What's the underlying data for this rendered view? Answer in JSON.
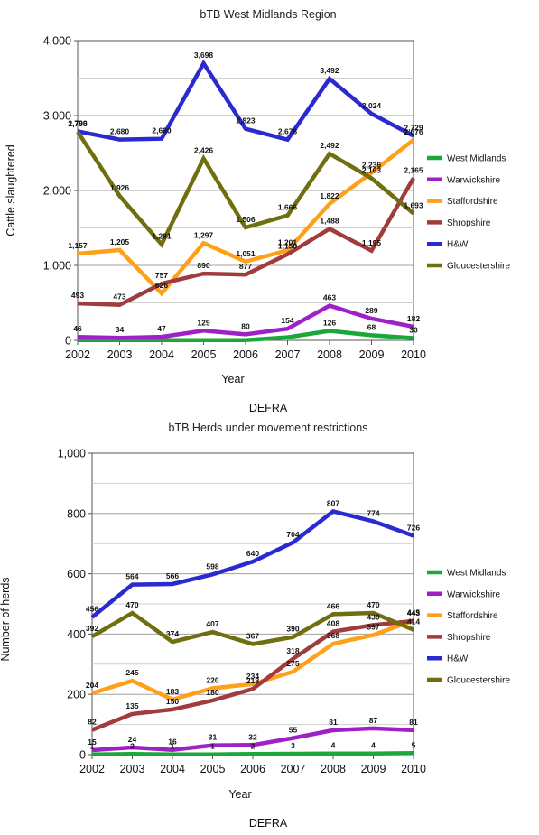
{
  "chart_data": [
    {
      "type": "line",
      "title": "bTB West Midlands Region",
      "xlabel": "Year",
      "ylabel": "Cattle slaughtered",
      "source": "DEFRA",
      "x": [
        "2002",
        "2003",
        "2004",
        "2005",
        "2006",
        "2007",
        "2008",
        "2009",
        "2010"
      ],
      "ylim": [
        0,
        4000
      ],
      "yticks": [
        0,
        1000,
        2000,
        3000,
        4000
      ],
      "ytick_labels": [
        "0",
        "1,000",
        "2,000",
        "3,000",
        "4,000"
      ],
      "grid": true,
      "legend_position": "right",
      "series": [
        {
          "name": "West Midlands",
          "color": "#1aa83a",
          "values": [
            2,
            2,
            2,
            2,
            2,
            41,
            126,
            68,
            30
          ]
        },
        {
          "name": "Warwickshire",
          "color": "#a020c8",
          "values": [
            46,
            34,
            47,
            129,
            80,
            154,
            463,
            289,
            182
          ]
        },
        {
          "name": "Staffordshire",
          "color": "#ffa01a",
          "values": [
            1157,
            1205,
            626,
            1297,
            1051,
            1201,
            1822,
            2236,
            2676
          ]
        },
        {
          "name": "Shropshire",
          "color": "#a03c3c",
          "values": [
            493,
            473,
            757,
            890,
            877,
            1150,
            1488,
            1195,
            2165
          ]
        },
        {
          "name": "H&W",
          "color": "#2a2ad0",
          "values": [
            2790,
            2680,
            2690,
            3698,
            2823,
            2678,
            3492,
            3024,
            2729
          ]
        },
        {
          "name": "Gloucestershire",
          "color": "#6f6f10",
          "values": [
            2785,
            1926,
            1281,
            2426,
            1506,
            1666,
            2492,
            2163,
            1693
          ]
        }
      ],
      "data_labels": [
        {
          "x": "2002",
          "text": "46",
          "y": 46
        },
        {
          "x": "2003",
          "text": "34",
          "y": 34
        },
        {
          "x": "2004",
          "text": "47",
          "y": 47
        },
        {
          "x": "2005",
          "text": "129",
          "y": 129
        },
        {
          "x": "2006",
          "text": "80",
          "y": 80
        },
        {
          "x": "2007",
          "text": "154",
          "y": 154
        },
        {
          "x": "2008",
          "text": "463",
          "y": 463
        },
        {
          "x": "2008",
          "text": "126",
          "y": 126
        },
        {
          "x": "2009",
          "text": "289",
          "y": 289
        },
        {
          "x": "2009",
          "text": "68",
          "y": 68
        },
        {
          "x": "2010",
          "text": "182",
          "y": 182
        },
        {
          "x": "2010",
          "text": "30",
          "y": 30
        },
        {
          "x": "2002",
          "text": "493",
          "y": 493
        },
        {
          "x": "2003",
          "text": "473",
          "y": 473
        },
        {
          "x": "2004",
          "text": "757",
          "y": 757
        },
        {
          "x": "2004",
          "text": "626",
          "y": 626
        },
        {
          "x": "2005",
          "text": "890",
          "y": 890
        },
        {
          "x": "2006",
          "text": "877",
          "y": 877
        },
        {
          "x": "2007",
          "text": "1,150",
          "y": 1150
        },
        {
          "x": "2008",
          "text": "1,488",
          "y": 1488
        },
        {
          "x": "2009",
          "text": "1,195",
          "y": 1195
        },
        {
          "x": "2010",
          "text": "2,165",
          "y": 2165
        },
        {
          "x": "2002",
          "text": "1,157",
          "y": 1157
        },
        {
          "x": "2003",
          "text": "1,205",
          "y": 1205
        },
        {
          "x": "2005",
          "text": "1,297",
          "y": 1297
        },
        {
          "x": "2006",
          "text": "1,051",
          "y": 1051
        },
        {
          "x": "2007",
          "text": "1,201",
          "y": 1201
        },
        {
          "x": "2008",
          "text": "1,822",
          "y": 1822
        },
        {
          "x": "2009",
          "text": "2,236",
          "y": 2236
        },
        {
          "x": "2010",
          "text": "2,676",
          "y": 2676
        },
        {
          "x": "2002",
          "text": "2,790",
          "y": 2790
        },
        {
          "x": "2002",
          "text": "2,785",
          "y": 2785
        },
        {
          "x": "2003",
          "text": "2,680",
          "y": 2680
        },
        {
          "x": "2004",
          "text": "2,690",
          "y": 2690
        },
        {
          "x": "2005",
          "text": "3,698",
          "y": 3698
        },
        {
          "x": "2006",
          "text": "2,823",
          "y": 2823
        },
        {
          "x": "2007",
          "text": "2,678",
          "y": 2678
        },
        {
          "x": "2008",
          "text": "3,492",
          "y": 3492
        },
        {
          "x": "2009",
          "text": "3,024",
          "y": 3024
        },
        {
          "x": "2010",
          "text": "2,729",
          "y": 2729
        },
        {
          "x": "2003",
          "text": "1,926",
          "y": 1926
        },
        {
          "x": "2004",
          "text": "1,281",
          "y": 1281
        },
        {
          "x": "2005",
          "text": "2,426",
          "y": 2426
        },
        {
          "x": "2006",
          "text": "1,506",
          "y": 1506
        },
        {
          "x": "2007",
          "text": "1,666",
          "y": 1666
        },
        {
          "x": "2008",
          "text": "2,492",
          "y": 2492
        },
        {
          "x": "2009",
          "text": "2,163",
          "y": 2163
        },
        {
          "x": "2010",
          "text": "1,693",
          "y": 1693
        }
      ]
    },
    {
      "type": "line",
      "title": "bTB Herds under movement restrictions",
      "xlabel": "Year",
      "ylabel": "Number of herds",
      "source": "DEFRA",
      "x": [
        "2002",
        "2003",
        "2004",
        "2005",
        "2006",
        "2007",
        "2008",
        "2009",
        "2010"
      ],
      "ylim": [
        0,
        1000
      ],
      "yticks": [
        0,
        200,
        400,
        600,
        800,
        1000
      ],
      "ytick_labels": [
        "0",
        "200",
        "400",
        "600",
        "800",
        "1,000"
      ],
      "grid": true,
      "legend_position": "right",
      "series": [
        {
          "name": "West Midlands",
          "color": "#1aa83a",
          "values": [
            1,
            2,
            1,
            1,
            2,
            3,
            4,
            4,
            5
          ]
        },
        {
          "name": "Warwickshire",
          "color": "#a020c8",
          "values": [
            15,
            24,
            16,
            31,
            32,
            55,
            81,
            87,
            81
          ]
        },
        {
          "name": "Staffordshire",
          "color": "#ffa01a",
          "values": [
            204,
            245,
            183,
            220,
            234,
            275,
            368,
            397,
            445
          ]
        },
        {
          "name": "Shropshire",
          "color": "#a03c3c",
          "values": [
            82,
            135,
            150,
            180,
            218,
            318,
            408,
            430,
            443
          ]
        },
        {
          "name": "H&W",
          "color": "#2a2ad0",
          "values": [
            456,
            564,
            566,
            598,
            640,
            704,
            807,
            774,
            726
          ]
        },
        {
          "name": "Gloucestershire",
          "color": "#6f6f10",
          "values": [
            392,
            470,
            374,
            407,
            367,
            390,
            466,
            470,
            414
          ]
        }
      ],
      "data_labels": [
        {
          "x": "2002",
          "text": "15",
          "y": 15
        },
        {
          "x": "2002",
          "text": "1",
          "y": 1
        },
        {
          "x": "2003",
          "text": "24",
          "y": 24
        },
        {
          "x": "2003",
          "text": "2",
          "y": 2
        },
        {
          "x": "2004",
          "text": "16",
          "y": 16
        },
        {
          "x": "2004",
          "text": "1",
          "y": 1
        },
        {
          "x": "2005",
          "text": "31",
          "y": 31
        },
        {
          "x": "2005",
          "text": "1",
          "y": 1
        },
        {
          "x": "2006",
          "text": "32",
          "y": 32
        },
        {
          "x": "2006",
          "text": "2",
          "y": 2
        },
        {
          "x": "2007",
          "text": "55",
          "y": 55
        },
        {
          "x": "2007",
          "text": "3",
          "y": 3
        },
        {
          "x": "2008",
          "text": "81",
          "y": 81
        },
        {
          "x": "2008",
          "text": "4",
          "y": 4
        },
        {
          "x": "2009",
          "text": "87",
          "y": 87
        },
        {
          "x": "2009",
          "text": "4",
          "y": 4
        },
        {
          "x": "2010",
          "text": "81",
          "y": 81
        },
        {
          "x": "2010",
          "text": "5",
          "y": 5
        },
        {
          "x": "2002",
          "text": "82",
          "y": 82
        },
        {
          "x": "2003",
          "text": "135",
          "y": 135
        },
        {
          "x": "2004",
          "text": "150",
          "y": 150
        },
        {
          "x": "2005",
          "text": "180",
          "y": 180
        },
        {
          "x": "2006",
          "text": "218",
          "y": 218
        },
        {
          "x": "2007",
          "text": "318",
          "y": 318
        },
        {
          "x": "2008",
          "text": "408",
          "y": 408
        },
        {
          "x": "2009",
          "text": "430",
          "y": 430
        },
        {
          "x": "2010",
          "text": "443",
          "y": 443
        },
        {
          "x": "2002",
          "text": "204",
          "y": 204
        },
        {
          "x": "2003",
          "text": "245",
          "y": 245
        },
        {
          "x": "2004",
          "text": "183",
          "y": 183
        },
        {
          "x": "2005",
          "text": "220",
          "y": 220
        },
        {
          "x": "2006",
          "text": "234",
          "y": 234
        },
        {
          "x": "2007",
          "text": "275",
          "y": 275
        },
        {
          "x": "2008",
          "text": "368",
          "y": 368
        },
        {
          "x": "2009",
          "text": "397",
          "y": 397
        },
        {
          "x": "2010",
          "text": "445",
          "y": 445
        },
        {
          "x": "2002",
          "text": "456",
          "y": 456
        },
        {
          "x": "2003",
          "text": "564",
          "y": 564
        },
        {
          "x": "2004",
          "text": "566",
          "y": 566
        },
        {
          "x": "2005",
          "text": "598",
          "y": 598
        },
        {
          "x": "2006",
          "text": "640",
          "y": 640
        },
        {
          "x": "2007",
          "text": "704",
          "y": 704
        },
        {
          "x": "2008",
          "text": "807",
          "y": 807
        },
        {
          "x": "2009",
          "text": "774",
          "y": 774
        },
        {
          "x": "2010",
          "text": "726",
          "y": 726
        },
        {
          "x": "2002",
          "text": "392",
          "y": 392
        },
        {
          "x": "2003",
          "text": "470",
          "y": 470
        },
        {
          "x": "2004",
          "text": "374",
          "y": 374
        },
        {
          "x": "2005",
          "text": "407",
          "y": 407
        },
        {
          "x": "2006",
          "text": "367",
          "y": 367
        },
        {
          "x": "2007",
          "text": "390",
          "y": 390
        },
        {
          "x": "2008",
          "text": "466",
          "y": 466
        },
        {
          "x": "2009",
          "text": "470",
          "y": 470
        },
        {
          "x": "2010",
          "text": "414",
          "y": 414
        }
      ]
    }
  ]
}
